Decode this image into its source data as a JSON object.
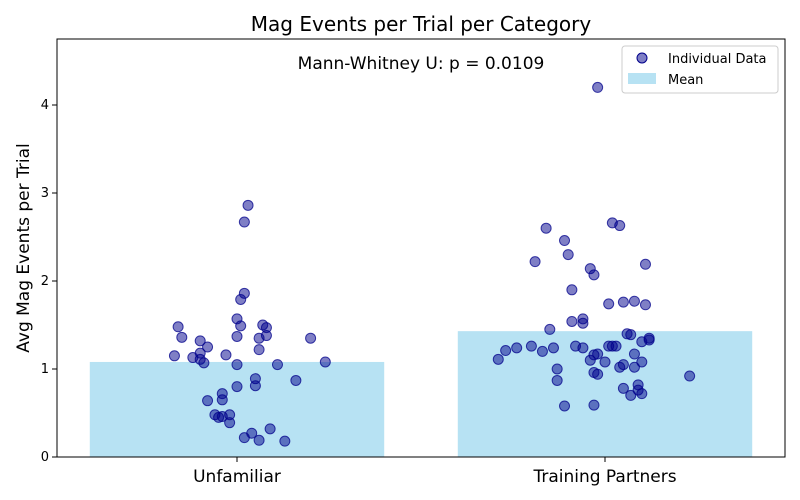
{
  "chart_data": {
    "type": "bar",
    "title": "Mag Events per Trial per Category",
    "annotation": "Mann-Whitney U: p = 0.0109",
    "xlabel": "",
    "ylabel": "Avg Mag Events per Trial",
    "categories": [
      "Unfamiliar",
      "Training Partners"
    ],
    "ylim": [
      0,
      4.75
    ],
    "yticks": [
      0,
      1,
      2,
      3,
      4
    ],
    "grid": false,
    "legend": {
      "placement": "top-right",
      "items": [
        {
          "label": "Individual Data",
          "kind": "marker"
        },
        {
          "label": "Mean",
          "kind": "patch"
        }
      ]
    },
    "colors": {
      "bar": "#87ceeb",
      "point_fill": "#00008b",
      "point_edge": "#00008b"
    },
    "series": [
      {
        "name": "Mean",
        "values": [
          1.08,
          1.43
        ]
      },
      {
        "name": "Individual Data",
        "points": [
          [
            [
              -0.16,
              1.48
            ],
            [
              -0.15,
              1.36
            ],
            [
              -0.17,
              1.15
            ],
            [
              -0.12,
              1.13
            ],
            [
              -0.1,
              1.32
            ],
            [
              -0.1,
              1.18
            ],
            [
              -0.1,
              1.11
            ],
            [
              -0.09,
              1.07
            ],
            [
              -0.08,
              1.25
            ],
            [
              -0.03,
              1.16
            ],
            [
              0.0,
              1.57
            ],
            [
              0.0,
              1.37
            ],
            [
              0.0,
              1.05
            ],
            [
              0.01,
              1.79
            ],
            [
              0.01,
              1.49
            ],
            [
              0.02,
              1.86
            ],
            [
              0.02,
              2.67
            ],
            [
              0.03,
              2.86
            ],
            [
              0.05,
              0.89
            ],
            [
              0.05,
              0.81
            ],
            [
              0.06,
              1.22
            ],
            [
              0.06,
              1.35
            ],
            [
              0.07,
              1.5
            ],
            [
              0.08,
              1.38
            ],
            [
              0.08,
              1.47
            ],
            [
              0.11,
              1.05
            ],
            [
              0.16,
              0.87
            ],
            [
              0.2,
              1.35
            ],
            [
              0.24,
              1.08
            ],
            [
              -0.08,
              0.64
            ],
            [
              -0.04,
              0.65
            ],
            [
              -0.04,
              0.72
            ],
            [
              -0.06,
              0.48
            ],
            [
              -0.04,
              0.46
            ],
            [
              -0.05,
              0.45
            ],
            [
              -0.02,
              0.48
            ],
            [
              -0.02,
              0.39
            ],
            [
              0.0,
              0.8
            ],
            [
              0.02,
              0.22
            ],
            [
              0.04,
              0.27
            ],
            [
              0.06,
              0.19
            ],
            [
              0.09,
              0.32
            ],
            [
              0.13,
              0.18
            ]
          ],
          [
            [
              -0.29,
              1.11
            ],
            [
              -0.27,
              1.21
            ],
            [
              -0.24,
              1.24
            ],
            [
              -0.2,
              1.26
            ],
            [
              -0.17,
              1.2
            ],
            [
              -0.19,
              2.22
            ],
            [
              -0.16,
              2.6
            ],
            [
              -0.15,
              1.45
            ],
            [
              -0.14,
              1.24
            ],
            [
              -0.13,
              1.0
            ],
            [
              -0.13,
              0.87
            ],
            [
              -0.11,
              0.58
            ],
            [
              -0.11,
              2.46
            ],
            [
              -0.1,
              2.3
            ],
            [
              -0.09,
              1.9
            ],
            [
              -0.09,
              1.54
            ],
            [
              -0.08,
              1.26
            ],
            [
              -0.06,
              1.24
            ],
            [
              -0.06,
              1.57
            ],
            [
              -0.06,
              1.52
            ],
            [
              -0.04,
              1.1
            ],
            [
              -0.04,
              2.14
            ],
            [
              -0.03,
              2.07
            ],
            [
              -0.03,
              0.96
            ],
            [
              -0.03,
              1.16
            ],
            [
              -0.02,
              1.17
            ],
            [
              -0.03,
              0.59
            ],
            [
              -0.02,
              4.2
            ],
            [
              -0.02,
              0.94
            ],
            [
              0.0,
              1.08
            ],
            [
              0.01,
              1.74
            ],
            [
              0.01,
              1.26
            ],
            [
              0.02,
              1.26
            ],
            [
              0.02,
              2.66
            ],
            [
              0.03,
              1.26
            ],
            [
              0.04,
              2.63
            ],
            [
              0.04,
              1.02
            ],
            [
              0.05,
              1.76
            ],
            [
              0.05,
              1.05
            ],
            [
              0.05,
              0.78
            ],
            [
              0.06,
              1.4
            ],
            [
              0.07,
              1.39
            ],
            [
              0.07,
              0.7
            ],
            [
              0.08,
              1.02
            ],
            [
              0.08,
              1.17
            ],
            [
              0.08,
              1.77
            ],
            [
              0.09,
              0.76
            ],
            [
              0.09,
              0.82
            ],
            [
              0.1,
              1.31
            ],
            [
              0.1,
              0.72
            ],
            [
              0.1,
              1.08
            ],
            [
              0.11,
              2.19
            ],
            [
              0.11,
              1.73
            ],
            [
              0.12,
              1.33
            ],
            [
              0.12,
              1.35
            ],
            [
              0.23,
              0.92
            ]
          ]
        ]
      }
    ]
  }
}
